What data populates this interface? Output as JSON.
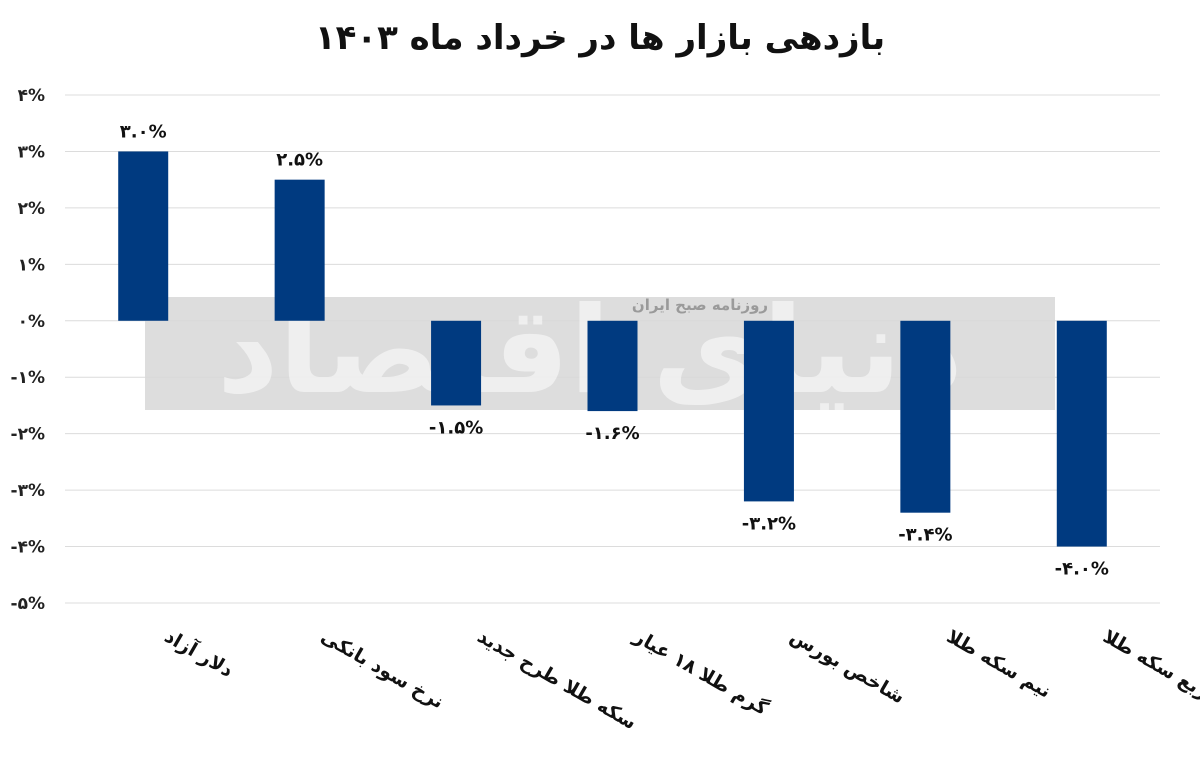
{
  "chart_data": {
    "type": "bar",
    "title": "بازدهی بازار ها در خرداد ماه ۱۴۰۳",
    "categories": [
      "دلار آزاد",
      "نرخ سود بانکی",
      "سکه طلا طرح جدید",
      "گرم طلا ۱۸ عیار",
      "شاخص بورس",
      "نیم سکه طلا",
      "ربع سکه طلا"
    ],
    "values": [
      3.0,
      2.5,
      -1.5,
      -1.6,
      -3.2,
      -3.4,
      -4.0
    ],
    "data_labels": [
      "۳.۰%",
      "۲.۵%",
      "-۱.۵%",
      "-۱.۶%",
      "-۳.۲%",
      "-۳.۴%",
      "-۴.۰%"
    ],
    "y_ticks": [
      4,
      3,
      2,
      1,
      0,
      -1,
      -2,
      -3,
      -4,
      -5
    ],
    "y_tick_labels": [
      "۴%",
      "۳%",
      "۲%",
      "۱%",
      "۰%",
      "-۱%",
      "-۲%",
      "-۳%",
      "-۴%",
      "-۵%"
    ],
    "ylim": [
      -5,
      4
    ],
    "bar_color": "#003a80",
    "grid": true,
    "legend": "none",
    "xlabel": "",
    "ylabel": ""
  },
  "watermark": {
    "logo_text": "دنیای اقتصاد",
    "tagline": "روزنامه صبح ایران"
  }
}
